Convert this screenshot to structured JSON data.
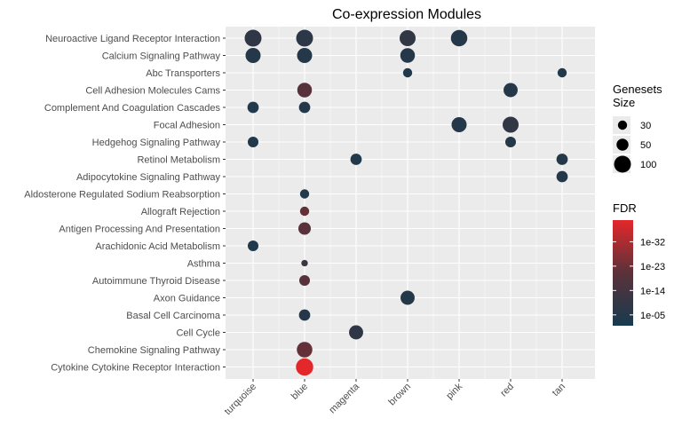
{
  "chart_data": {
    "type": "scatter",
    "title": "Co-expression Modules",
    "xlabel": "",
    "ylabel": "",
    "x_categories": [
      "turquoise",
      "blue",
      "magenta",
      "brown",
      "pink",
      "red",
      "tan"
    ],
    "y_categories": [
      "Neuroactive Ligand Receptor Interaction",
      "Calcium Signaling Pathway",
      "Abc Transporters",
      "Cell Adhesion Molecules Cams",
      "Complement And Coagulation Cascades",
      "Focal Adhesion",
      "Hedgehog Signaling Pathway",
      "Retinol Metabolism",
      "Adipocytokine Signaling Pathway",
      "Aldosterone Regulated Sodium Reabsorption",
      "Allograft Rejection",
      "Antigen Processing And Presentation",
      "Arachidonic Acid Metabolism",
      "Asthma",
      "Autoimmune Thyroid Disease",
      "Axon Guidance",
      "Basal Cell Carcinoma",
      "Cell Cycle",
      "Chemokine Signaling Pathway",
      "Cytokine Cytokine Receptor Interaction"
    ],
    "points": [
      {
        "module": "turquoise",
        "pathway": "Neuroactive Ligand Receptor Interaction",
        "size": 100,
        "log10_fdr": -8
      },
      {
        "module": "turquoise",
        "pathway": "Calcium Signaling Pathway",
        "size": 80,
        "log10_fdr": -5
      },
      {
        "module": "turquoise",
        "pathway": "Complement And Coagulation Cascades",
        "size": 45,
        "log10_fdr": -4
      },
      {
        "module": "turquoise",
        "pathway": "Hedgehog Signaling Pathway",
        "size": 40,
        "log10_fdr": -4
      },
      {
        "module": "turquoise",
        "pathway": "Arachidonic Acid Metabolism",
        "size": 40,
        "log10_fdr": -4
      },
      {
        "module": "blue",
        "pathway": "Neuroactive Ligand Receptor Interaction",
        "size": 100,
        "log10_fdr": -7
      },
      {
        "module": "blue",
        "pathway": "Calcium Signaling Pathway",
        "size": 80,
        "log10_fdr": -5
      },
      {
        "module": "blue",
        "pathway": "Cell Adhesion Molecules Cams",
        "size": 75,
        "log10_fdr": -20
      },
      {
        "module": "blue",
        "pathway": "Complement And Coagulation Cascades",
        "size": 45,
        "log10_fdr": -5
      },
      {
        "module": "blue",
        "pathway": "Aldosterone Regulated Sodium Reabsorption",
        "size": 30,
        "log10_fdr": -4
      },
      {
        "module": "blue",
        "pathway": "Allograft Rejection",
        "size": 30,
        "log10_fdr": -22
      },
      {
        "module": "blue",
        "pathway": "Antigen Processing And Presentation",
        "size": 55,
        "log10_fdr": -20
      },
      {
        "module": "blue",
        "pathway": "Asthma",
        "size": 15,
        "log10_fdr": -12
      },
      {
        "module": "blue",
        "pathway": "Autoimmune Thyroid Disease",
        "size": 40,
        "log10_fdr": -20
      },
      {
        "module": "blue",
        "pathway": "Basal Cell Carcinoma",
        "size": 45,
        "log10_fdr": -5
      },
      {
        "module": "blue",
        "pathway": "Chemokine Signaling Pathway",
        "size": 85,
        "log10_fdr": -22
      },
      {
        "module": "blue",
        "pathway": "Cytokine Cytokine Receptor Interaction",
        "size": 105,
        "log10_fdr": -40
      },
      {
        "module": "magenta",
        "pathway": "Retinol Metabolism",
        "size": 45,
        "log10_fdr": -4
      },
      {
        "module": "magenta",
        "pathway": "Cell Cycle",
        "size": 70,
        "log10_fdr": -8
      },
      {
        "module": "brown",
        "pathway": "Neuroactive Ligand Receptor Interaction",
        "size": 90,
        "log10_fdr": -9
      },
      {
        "module": "brown",
        "pathway": "Calcium Signaling Pathway",
        "size": 75,
        "log10_fdr": -5
      },
      {
        "module": "brown",
        "pathway": "Abc Transporters",
        "size": 30,
        "log10_fdr": -4
      },
      {
        "module": "brown",
        "pathway": "Axon Guidance",
        "size": 70,
        "log10_fdr": -5
      },
      {
        "module": "pink",
        "pathway": "Neuroactive Ligand Receptor Interaction",
        "size": 95,
        "log10_fdr": -5
      },
      {
        "module": "pink",
        "pathway": "Focal Adhesion",
        "size": 80,
        "log10_fdr": -5
      },
      {
        "module": "red",
        "pathway": "Cell Adhesion Molecules Cams",
        "size": 70,
        "log10_fdr": -5
      },
      {
        "module": "red",
        "pathway": "Focal Adhesion",
        "size": 90,
        "log10_fdr": -9
      },
      {
        "module": "red",
        "pathway": "Hedgehog Signaling Pathway",
        "size": 40,
        "log10_fdr": -5
      },
      {
        "module": "tan",
        "pathway": "Abc Transporters",
        "size": 30,
        "log10_fdr": -4
      },
      {
        "module": "tan",
        "pathway": "Retinol Metabolism",
        "size": 45,
        "log10_fdr": -5
      },
      {
        "module": "tan",
        "pathway": "Adipocytokine Signaling Pathway",
        "size": 45,
        "log10_fdr": -5
      }
    ],
    "legend_size": {
      "title_line1": "Genesets",
      "title_line2": "Size",
      "entries": [
        {
          "label": "30",
          "value": 30
        },
        {
          "label": "50",
          "value": 50
        },
        {
          "label": "100",
          "value": 100
        }
      ]
    },
    "legend_color": {
      "title": "FDR",
      "min_log10": -40,
      "max_log10": -1,
      "low_color": "#e3272b",
      "high_color": "#173a4e",
      "ticks": [
        {
          "label": "1e-32",
          "log10": -32
        },
        {
          "label": "1e-23",
          "log10": -23
        },
        {
          "label": "1e-14",
          "log10": -14
        },
        {
          "label": "1e-05",
          "log10": -5
        }
      ]
    },
    "panel_background": "#ebebeb",
    "grid_color": "#ffffff"
  }
}
